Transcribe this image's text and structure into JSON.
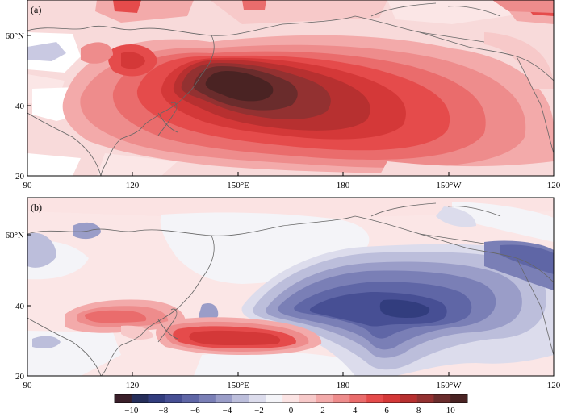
{
  "panels": [
    {
      "label": "(a)",
      "x_ticks": [
        "90",
        "120",
        "150°E",
        "180",
        "150°W",
        "120"
      ],
      "y_ticks": [
        "60°N",
        "40",
        "20"
      ]
    },
    {
      "label": "(b)",
      "x_ticks": [
        "90",
        "120",
        "150°E",
        "180",
        "150°W",
        "120"
      ],
      "y_ticks": [
        "60°N",
        "40",
        "20"
      ]
    }
  ],
  "colorbar": {
    "tick_labels": [
      "−10",
      "−8",
      "−6",
      "−4",
      "−2",
      "0",
      "2",
      "4",
      "6",
      "8",
      "10"
    ],
    "bin_colors": [
      "#3a1f2a",
      "#262e5a",
      "#323d7e",
      "#474f94",
      "#5f66a6",
      "#7a7fb6",
      "#9a9dc8",
      "#bcbedb",
      "#dcdcec",
      "#f4f4f8",
      "#fbe3e3",
      "#f7c9c9",
      "#f3aaaa",
      "#ee8c8c",
      "#ea6c6c",
      "#e54b4b",
      "#d43838",
      "#b73030",
      "#933131",
      "#6a2c2c",
      "#4a2323"
    ]
  },
  "chart_data": {
    "type": "heatmap",
    "panels": [
      "(a)",
      "(b)"
    ],
    "x_ticks": [
      "90",
      "120",
      "150°E",
      "180",
      "150°W",
      "120"
    ],
    "y_ticks": [
      "60°N",
      "40",
      "20"
    ],
    "color_scale_ticks": [
      -10,
      -8,
      -6,
      -4,
      -2,
      0,
      2,
      4,
      6,
      8,
      10
    ]
  }
}
